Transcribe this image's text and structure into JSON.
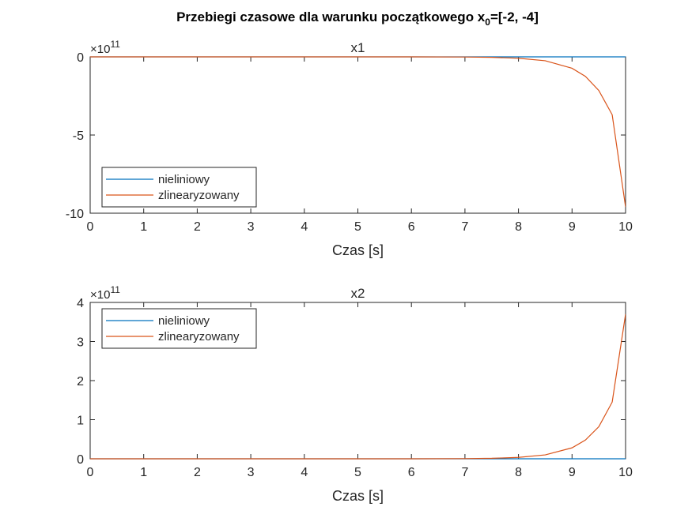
{
  "figure": {
    "title": "Przebiegi czasowe dla warunku początkowego x",
    "title_subscript": "0",
    "title_suffix": "=[-2, -4]"
  },
  "chart_data": [
    {
      "type": "line",
      "title": "x1",
      "xlabel": "Czas [s]",
      "ylabel": "",
      "xlim": [
        0,
        10
      ],
      "ylim": [
        -10,
        0
      ],
      "y_multiplier_label": "×10",
      "y_multiplier_exponent": "11",
      "xticks": [
        0,
        1,
        2,
        3,
        4,
        5,
        6,
        7,
        8,
        9,
        10
      ],
      "yticks": [
        -10,
        -5,
        0
      ],
      "legend_position": "bottom-left",
      "grid": false,
      "series": [
        {
          "name": "nieliniowy",
          "color": "#0072BD",
          "x": [
            0,
            1,
            2,
            3,
            4,
            5,
            6,
            7,
            8,
            9,
            10
          ],
          "y": [
            0,
            0,
            0,
            0,
            0,
            0,
            0,
            0,
            0,
            0,
            0
          ]
        },
        {
          "name": "zlinearyzowany",
          "color": "#D95319",
          "x": [
            0,
            1,
            2,
            3,
            4,
            5,
            6,
            7,
            7.5,
            8,
            8.5,
            9,
            9.25,
            9.5,
            9.75,
            10
          ],
          "y": [
            0,
            0,
            0,
            0,
            0,
            0,
            0,
            -0.01,
            -0.03,
            -0.09,
            -0.25,
            -0.73,
            -1.25,
            -2.15,
            -3.7,
            -9.6
          ]
        }
      ]
    },
    {
      "type": "line",
      "title": "x2",
      "xlabel": "Czas [s]",
      "ylabel": "",
      "xlim": [
        0,
        10
      ],
      "ylim": [
        0,
        4
      ],
      "y_multiplier_label": "×10",
      "y_multiplier_exponent": "11",
      "xticks": [
        0,
        1,
        2,
        3,
        4,
        5,
        6,
        7,
        8,
        9,
        10
      ],
      "yticks": [
        0,
        1,
        2,
        3,
        4
      ],
      "legend_position": "top-left",
      "grid": false,
      "series": [
        {
          "name": "nieliniowy",
          "color": "#0072BD",
          "x": [
            0,
            1,
            2,
            3,
            4,
            5,
            6,
            7,
            8,
            9,
            10
          ],
          "y": [
            0,
            0,
            0,
            0,
            0,
            0,
            0,
            0,
            0,
            0,
            0
          ]
        },
        {
          "name": "zlinearyzowany",
          "color": "#D95319",
          "x": [
            0,
            1,
            2,
            3,
            4,
            5,
            6,
            7,
            7.5,
            8,
            8.5,
            9,
            9.25,
            9.5,
            9.75,
            10
          ],
          "y": [
            0,
            0,
            0,
            0,
            0,
            0,
            0,
            0.004,
            0.012,
            0.035,
            0.1,
            0.28,
            0.48,
            0.82,
            1.45,
            3.7
          ]
        }
      ]
    }
  ]
}
